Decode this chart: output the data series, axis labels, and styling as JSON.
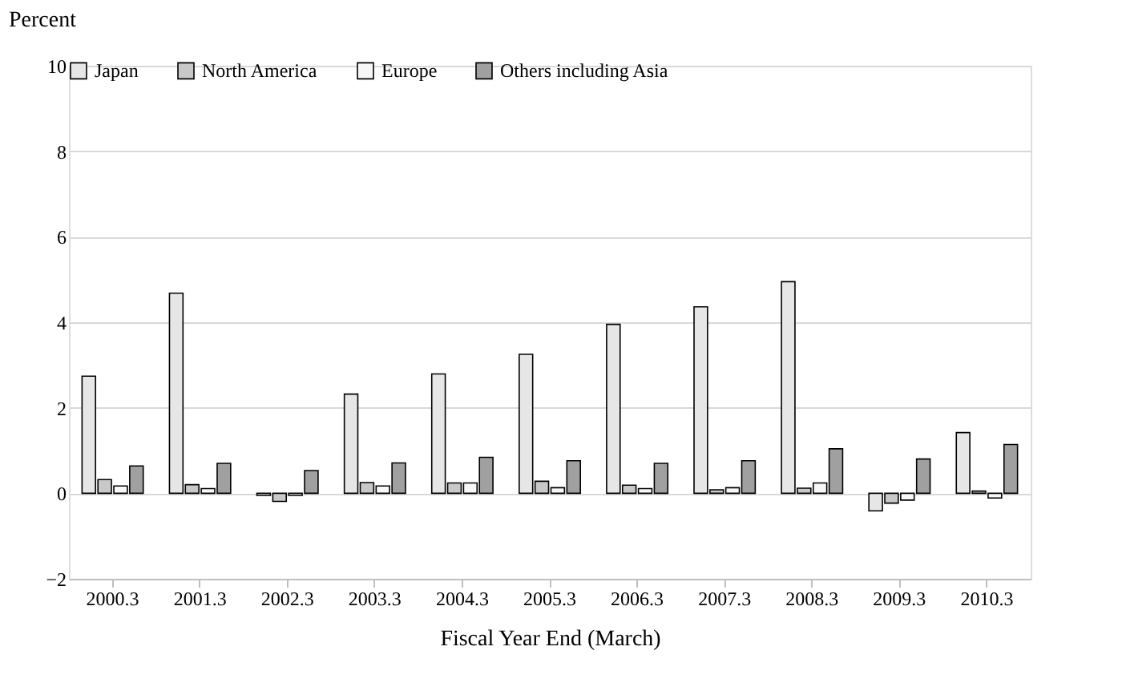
{
  "chart_data": {
    "type": "bar",
    "ylabel": "Percent",
    "xlabel": "Fiscal Year End (March)",
    "categories": [
      "2000.3",
      "2001.3",
      "2002.3",
      "2003.3",
      "2004.3",
      "2005.3",
      "2006.3",
      "2007.3",
      "2008.3",
      "2009.3",
      "2010.3"
    ],
    "series": [
      {
        "name": "Japan",
        "color": "#e6e6e6",
        "values": [
          2.74,
          4.68,
          -0.05,
          2.32,
          2.79,
          3.25,
          3.95,
          4.36,
          4.95,
          -0.41,
          1.42
        ]
      },
      {
        "name": "North America",
        "color": "#c8c8c8",
        "values": [
          0.32,
          0.2,
          -0.19,
          0.25,
          0.24,
          0.28,
          0.19,
          0.08,
          0.12,
          -0.23,
          0.05
        ]
      },
      {
        "name": "Europe",
        "color": "#f7f7f7",
        "values": [
          0.17,
          0.11,
          -0.05,
          0.17,
          0.24,
          0.13,
          0.11,
          0.13,
          0.24,
          -0.16,
          -0.11
        ]
      },
      {
        "name": "Others including Asia",
        "color": "#a0a0a0",
        "values": [
          0.64,
          0.7,
          0.53,
          0.71,
          0.84,
          0.76,
          0.7,
          0.76,
          1.04,
          0.8,
          1.14
        ]
      }
    ],
    "ylim": [
      -2,
      10
    ],
    "yticks": [
      -2,
      0,
      2,
      4,
      6,
      8,
      10
    ],
    "grid": "y",
    "legend": "top"
  }
}
